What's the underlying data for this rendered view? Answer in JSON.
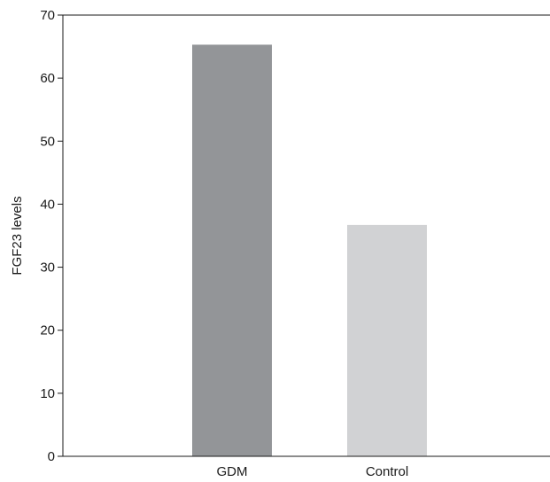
{
  "chart_data": {
    "type": "bar",
    "title": "",
    "xlabel": "",
    "ylabel": "FGF23 levels",
    "categories": [
      "GDM",
      "Control"
    ],
    "values": [
      65.3,
      36.7
    ],
    "bar_colors": [
      "#939598",
      "#d1d2d4"
    ],
    "ylim": [
      0,
      70
    ],
    "yticks": [
      0,
      10,
      20,
      30,
      40,
      50,
      60,
      70
    ],
    "grid": false,
    "legend": "none"
  }
}
